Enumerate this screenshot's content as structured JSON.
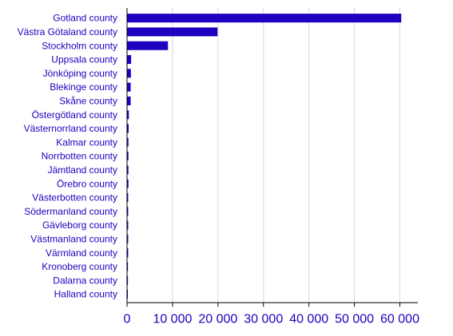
{
  "chart_data": {
    "type": "bar",
    "orientation": "horizontal",
    "title": "",
    "xlabel": "",
    "ylabel": "",
    "categories": [
      "Gotland county",
      "Västra Götaland county",
      "Stockholm county",
      "Uppsala county",
      "Jönköping county",
      "Blekinge county",
      "Skåne county",
      "Östergötland county",
      "Västernorrland county",
      "Kalmar county",
      "Norrbotten county",
      "Jämtland county",
      "Örebro county",
      "Västerbotten county",
      "Södermanland county",
      "Gävleborg county",
      "Västmanland county",
      "Värmland county",
      "Kronoberg county",
      "Dalarna county",
      "Halland county"
    ],
    "values": [
      60300,
      19900,
      9000,
      900,
      850,
      800,
      800,
      400,
      350,
      300,
      300,
      300,
      300,
      250,
      250,
      250,
      250,
      250,
      200,
      200,
      150
    ],
    "xlim": [
      0,
      65000
    ],
    "xticks": [
      0,
      10000,
      20000,
      30000,
      40000,
      50000,
      60000
    ],
    "xtick_labels": [
      "0",
      "10 000",
      "20 000",
      "30 000",
      "40 000",
      "50 000",
      "60 000"
    ],
    "grid": true,
    "legend": "none",
    "colors": {
      "bar": "#1e00be",
      "text": "#1e00be",
      "grid": "#d6d6ee",
      "axis": "#000000"
    }
  }
}
